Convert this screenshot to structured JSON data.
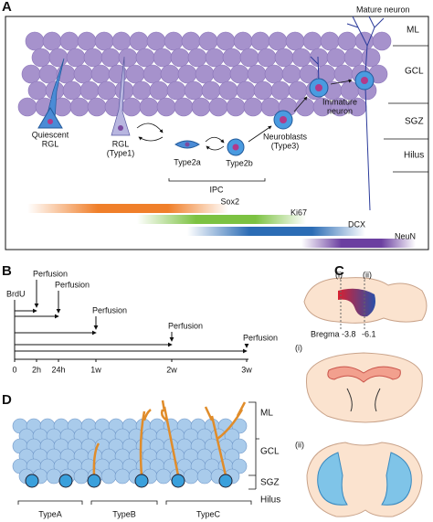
{
  "a": {
    "label": "A",
    "mature": "Mature neuron",
    "layers": [
      "ML",
      "GCL",
      "SGZ",
      "Hilus"
    ],
    "quiescent": [
      "Quiescent",
      "RGL"
    ],
    "rgl": [
      "RGL",
      "(Type1)"
    ],
    "type2a": "Type2a",
    "type2b": "Type2b",
    "ipc": "IPC",
    "neuroblasts": [
      "Neuroblasts",
      "(Type3)"
    ],
    "immature": [
      "Immature",
      "neuron"
    ],
    "markers": [
      {
        "name": "Sox2",
        "color": "#f07f2a"
      },
      {
        "name": "Ki67",
        "color": "#7cc242"
      },
      {
        "name": "DCX",
        "color": "#2b6cb5"
      },
      {
        "name": "NeuN",
        "color": "#6b3fa0"
      }
    ]
  },
  "b": {
    "label": "B",
    "pulse": "BrdU",
    "perfusions": [
      "Perfusion",
      "Perfusion",
      "Perfusion",
      "Perfusion",
      "Perfusion"
    ],
    "times": [
      "0",
      "2h",
      "24h",
      "1w",
      "2w",
      "3w"
    ]
  },
  "c": {
    "label": "C",
    "planes": [
      "(i)",
      "(ii)"
    ],
    "bregma": [
      "Bregma -3.8",
      "-6.1"
    ],
    "sections": [
      "(i)",
      "(ii)"
    ]
  },
  "d": {
    "label": "D",
    "layers": [
      "ML",
      "GCL",
      "SGZ",
      "Hilus"
    ],
    "types": [
      "TypeA",
      "TypeB",
      "TypeC"
    ]
  }
}
